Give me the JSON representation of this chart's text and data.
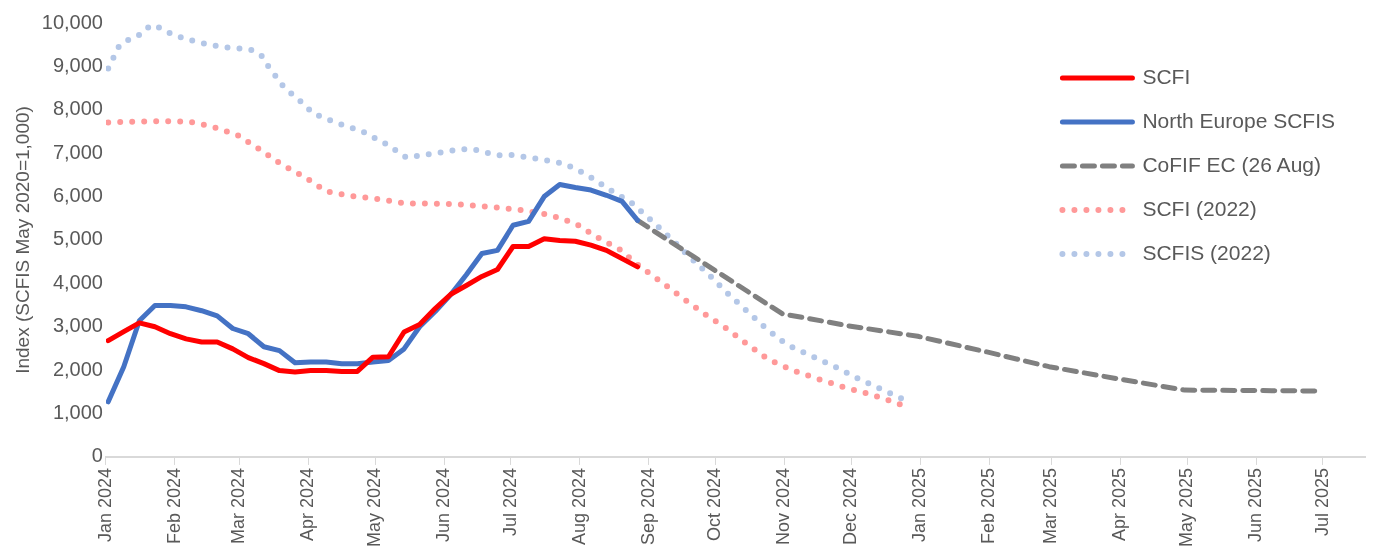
{
  "chart_data": {
    "type": "line",
    "ylabel": "Index (SCFIS May 2020=1,000)",
    "x": [
      "2024-01-02",
      "2024-01-09",
      "2024-01-16",
      "2024-01-23",
      "2024-01-30",
      "2024-02-06",
      "2024-02-13",
      "2024-02-20",
      "2024-02-27",
      "2024-03-05",
      "2024-03-12",
      "2024-03-19",
      "2024-03-26",
      "2024-04-02",
      "2024-04-09",
      "2024-04-16",
      "2024-04-23",
      "2024-04-30",
      "2024-05-07",
      "2024-05-14",
      "2024-05-21",
      "2024-05-28",
      "2024-06-04",
      "2024-06-11",
      "2024-06-18",
      "2024-06-25",
      "2024-07-02",
      "2024-07-09",
      "2024-07-16",
      "2024-07-23",
      "2024-07-30",
      "2024-08-06",
      "2024-08-13",
      "2024-08-20",
      "2024-08-27"
    ],
    "series": [
      {
        "name": "SCFI",
        "color": "#ff0000",
        "line_style": "solid",
        "values": [
          2680,
          2890,
          3090,
          3000,
          2840,
          2720,
          2650,
          2650,
          2490,
          2290,
          2150,
          1990,
          1960,
          1990,
          1990,
          1970,
          1970,
          2300,
          2310,
          2880,
          3050,
          3420,
          3750,
          3950,
          4160,
          4320,
          4850,
          4850,
          5030,
          4990,
          4970,
          4880,
          4760,
          4570,
          4380
        ]
      },
      {
        "name": "North Europe SCFIS",
        "color": "#4472c4",
        "line_style": "solid",
        "values": [
          1270,
          2080,
          3140,
          3490,
          3490,
          3460,
          3370,
          3250,
          2960,
          2840,
          2540,
          2450,
          2170,
          2190,
          2190,
          2150,
          2150,
          2190,
          2220,
          2490,
          3000,
          3350,
          3740,
          4200,
          4690,
          4760,
          5340,
          5430,
          6000,
          6280,
          6210,
          6150,
          6030,
          5890,
          5450
        ]
      },
      {
        "name": "CoFIF EC (26 Aug)",
        "color": "#808080",
        "line_style": "dashed",
        "x": [
          "2024-08-27",
          "2024-10-31",
          "2024-11-30",
          "2024-12-31",
          "2025-01-31",
          "2025-02-28",
          "2025-03-31",
          "2025-04-30",
          "2025-05-31",
          "2025-06-30"
        ],
        "values": [
          5450,
          3300,
          3020,
          2780,
          2420,
          2080,
          1800,
          1540,
          1530,
          1520
        ]
      },
      {
        "name": "SCFI (2022)",
        "color": "#ff9999",
        "line_style": "dotted",
        "x": [
          "2024-01-02",
          "2024-01-26",
          "2024-02-07",
          "2024-02-18",
          "2024-02-29",
          "2024-03-10",
          "2024-03-20",
          "2024-03-30",
          "2024-04-09",
          "2024-04-21",
          "2024-05-03",
          "2024-05-15",
          "2024-05-27",
          "2024-06-08",
          "2024-06-19",
          "2024-06-25",
          "2024-07-07",
          "2024-07-19",
          "2024-07-30",
          "2024-08-09",
          "2024-08-19",
          "2024-08-28",
          "2024-09-07",
          "2024-09-16",
          "2024-09-26",
          "2024-10-06",
          "2024-10-15",
          "2024-10-25",
          "2024-11-05",
          "2024-11-16",
          "2024-11-27",
          "2024-12-09",
          "2024-12-20",
          "2024-12-26"
        ],
        "values": [
          7710,
          7740,
          7730,
          7610,
          7420,
          7090,
          6740,
          6460,
          6120,
          6010,
          5940,
          5840,
          5840,
          5820,
          5770,
          5750,
          5680,
          5570,
          5380,
          5060,
          4780,
          4390,
          4020,
          3670,
          3300,
          2960,
          2610,
          2240,
          1990,
          1800,
          1620,
          1450,
          1270,
          1150
        ]
      },
      {
        "name": "SCFIS (2022)",
        "color": "#b4c7e7",
        "line_style": "dotted",
        "x": [
          "2024-01-02",
          "2024-01-07",
          "2024-01-12",
          "2024-01-17",
          "2024-01-21",
          "2024-01-26",
          "2024-01-31",
          "2024-02-11",
          "2024-02-23",
          "2024-03-06",
          "2024-03-11",
          "2024-03-14",
          "2024-03-21",
          "2024-03-30",
          "2024-04-03",
          "2024-04-14",
          "2024-04-25",
          "2024-05-06",
          "2024-05-15",
          "2024-05-27",
          "2024-06-08",
          "2024-06-14",
          "2024-06-25",
          "2024-07-01",
          "2024-07-13",
          "2024-07-25",
          "2024-08-04",
          "2024-08-14",
          "2024-08-24",
          "2024-09-02",
          "2024-09-11",
          "2024-09-19",
          "2024-09-28",
          "2024-10-06",
          "2024-10-15",
          "2024-10-24",
          "2024-11-02",
          "2024-11-13",
          "2024-11-24",
          "2024-12-04",
          "2024-12-15",
          "2024-12-26"
        ],
        "values": [
          8950,
          9480,
          9640,
          9750,
          9950,
          9880,
          9730,
          9560,
          9440,
          9390,
          9240,
          9000,
          8520,
          8130,
          7920,
          7690,
          7510,
          7210,
          6900,
          6990,
          7090,
          7090,
          6950,
          6960,
          6870,
          6760,
          6510,
          6170,
          5870,
          5460,
          5030,
          4630,
          4200,
          3790,
          3370,
          2950,
          2590,
          2330,
          2070,
          1810,
          1550,
          1290
        ]
      }
    ],
    "xlim": [
      "2024-01-01",
      "2025-07-20"
    ],
    "xticks": [
      {
        "value": "2024-01-01",
        "label": "Jan 2024"
      },
      {
        "value": "2024-02-01",
        "label": "Feb 2024"
      },
      {
        "value": "2024-03-01",
        "label": "Mar 2024"
      },
      {
        "value": "2024-04-01",
        "label": "Apr 2024"
      },
      {
        "value": "2024-05-01",
        "label": "May 2024"
      },
      {
        "value": "2024-06-01",
        "label": "Jun 2024"
      },
      {
        "value": "2024-07-01",
        "label": "Jul 2024"
      },
      {
        "value": "2024-08-01",
        "label": "Aug 2024"
      },
      {
        "value": "2024-09-01",
        "label": "Sep 2024"
      },
      {
        "value": "2024-10-01",
        "label": "Oct 2024"
      },
      {
        "value": "2024-11-01",
        "label": "Nov 2024"
      },
      {
        "value": "2024-12-01",
        "label": "Dec 2024"
      },
      {
        "value": "2025-01-01",
        "label": "Jan 2025"
      },
      {
        "value": "2025-02-01",
        "label": "Feb 2025"
      },
      {
        "value": "2025-03-01",
        "label": "Mar 2025"
      },
      {
        "value": "2025-04-01",
        "label": "Apr 2025"
      },
      {
        "value": "2025-05-01",
        "label": "May 2025"
      },
      {
        "value": "2025-06-01",
        "label": "Jun 2025"
      },
      {
        "value": "2025-07-01",
        "label": "Jul 2025"
      }
    ],
    "ylim": [
      0,
      10000
    ],
    "yticks": [
      0,
      {
        "value": 1000,
        "label": "1,000"
      },
      {
        "value": 2000,
        "label": "2,000"
      },
      {
        "value": 3000,
        "label": "3,000"
      },
      {
        "value": 4000,
        "label": "4,000"
      },
      {
        "value": 5000,
        "label": "5,000"
      },
      {
        "value": 6000,
        "label": "6,000"
      },
      {
        "value": 7000,
        "label": "7,000"
      },
      {
        "value": 8000,
        "label": "8,000"
      },
      {
        "value": 9000,
        "label": "9,000"
      },
      {
        "value": 10000,
        "label": "10,000"
      }
    ],
    "grid": false,
    "legend": "top right",
    "marker": "none"
  }
}
